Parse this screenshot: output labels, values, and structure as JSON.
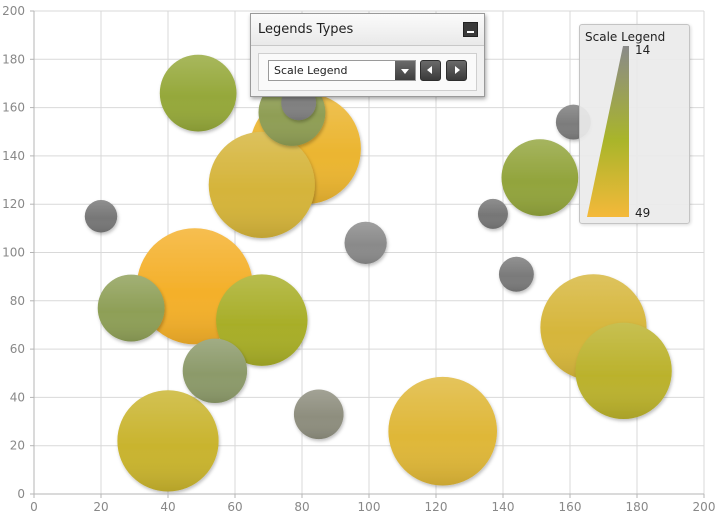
{
  "chart_data": {
    "type": "bubble",
    "xlim": [
      0,
      200
    ],
    "ylim": [
      0,
      200
    ],
    "x_ticks": [
      0,
      20,
      40,
      60,
      80,
      100,
      120,
      140,
      160,
      180,
      200
    ],
    "y_ticks": [
      0,
      20,
      40,
      60,
      80,
      100,
      120,
      140,
      160,
      180,
      200
    ],
    "grid": true,
    "points": [
      {
        "x": 48,
        "y": 86,
        "size": 49,
        "color": "#f4b02a"
      },
      {
        "x": 81,
        "y": 143,
        "size": 47,
        "color": "#ebb530"
      },
      {
        "x": 122,
        "y": 26,
        "size": 46,
        "color": "#dfb738"
      },
      {
        "x": 167,
        "y": 69,
        "size": 45,
        "color": "#d6b63b"
      },
      {
        "x": 68,
        "y": 128,
        "size": 45,
        "color": "#d5b43a"
      },
      {
        "x": 40,
        "y": 22,
        "size": 43,
        "color": "#c9b42e"
      },
      {
        "x": 176,
        "y": 51,
        "size": 41,
        "color": "#bbb22c"
      },
      {
        "x": 68,
        "y": 72,
        "size": 39,
        "color": "#a8ae28"
      },
      {
        "x": 49,
        "y": 166,
        "size": 33,
        "color": "#95a83a"
      },
      {
        "x": 151,
        "y": 131,
        "size": 33,
        "color": "#92a43c"
      },
      {
        "x": 29,
        "y": 77,
        "size": 29,
        "color": "#8e9f57"
      },
      {
        "x": 77,
        "y": 158,
        "size": 29,
        "color": "#8f9e55"
      },
      {
        "x": 54,
        "y": 51,
        "size": 28,
        "color": "#8c9a6a"
      },
      {
        "x": 85,
        "y": 33,
        "size": 22,
        "color": "#8e8e7e"
      },
      {
        "x": 99,
        "y": 104,
        "size": 19,
        "color": "#8a8a8a"
      },
      {
        "x": 79,
        "y": 162,
        "size": 16,
        "color": "#808080"
      },
      {
        "x": 161,
        "y": 154,
        "size": 16,
        "color": "#7c7c7c"
      },
      {
        "x": 144,
        "y": 91,
        "size": 16,
        "color": "#7a7a7a"
      },
      {
        "x": 20,
        "y": 115,
        "size": 15,
        "color": "#777777"
      },
      {
        "x": 137,
        "y": 116,
        "size": 14,
        "color": "#767676"
      }
    ]
  },
  "panel": {
    "title": "Legends Types",
    "select_value": "Scale Legend"
  },
  "legend": {
    "title": "Scale Legend",
    "max_label": "14",
    "min_label": "49"
  },
  "colors": {
    "scale_top": "#8a8a8a",
    "scale_mid": "#a9b52a",
    "scale_bottom": "#f4b93a",
    "grid": "#d9d9d9",
    "axis_text": "#888888"
  }
}
